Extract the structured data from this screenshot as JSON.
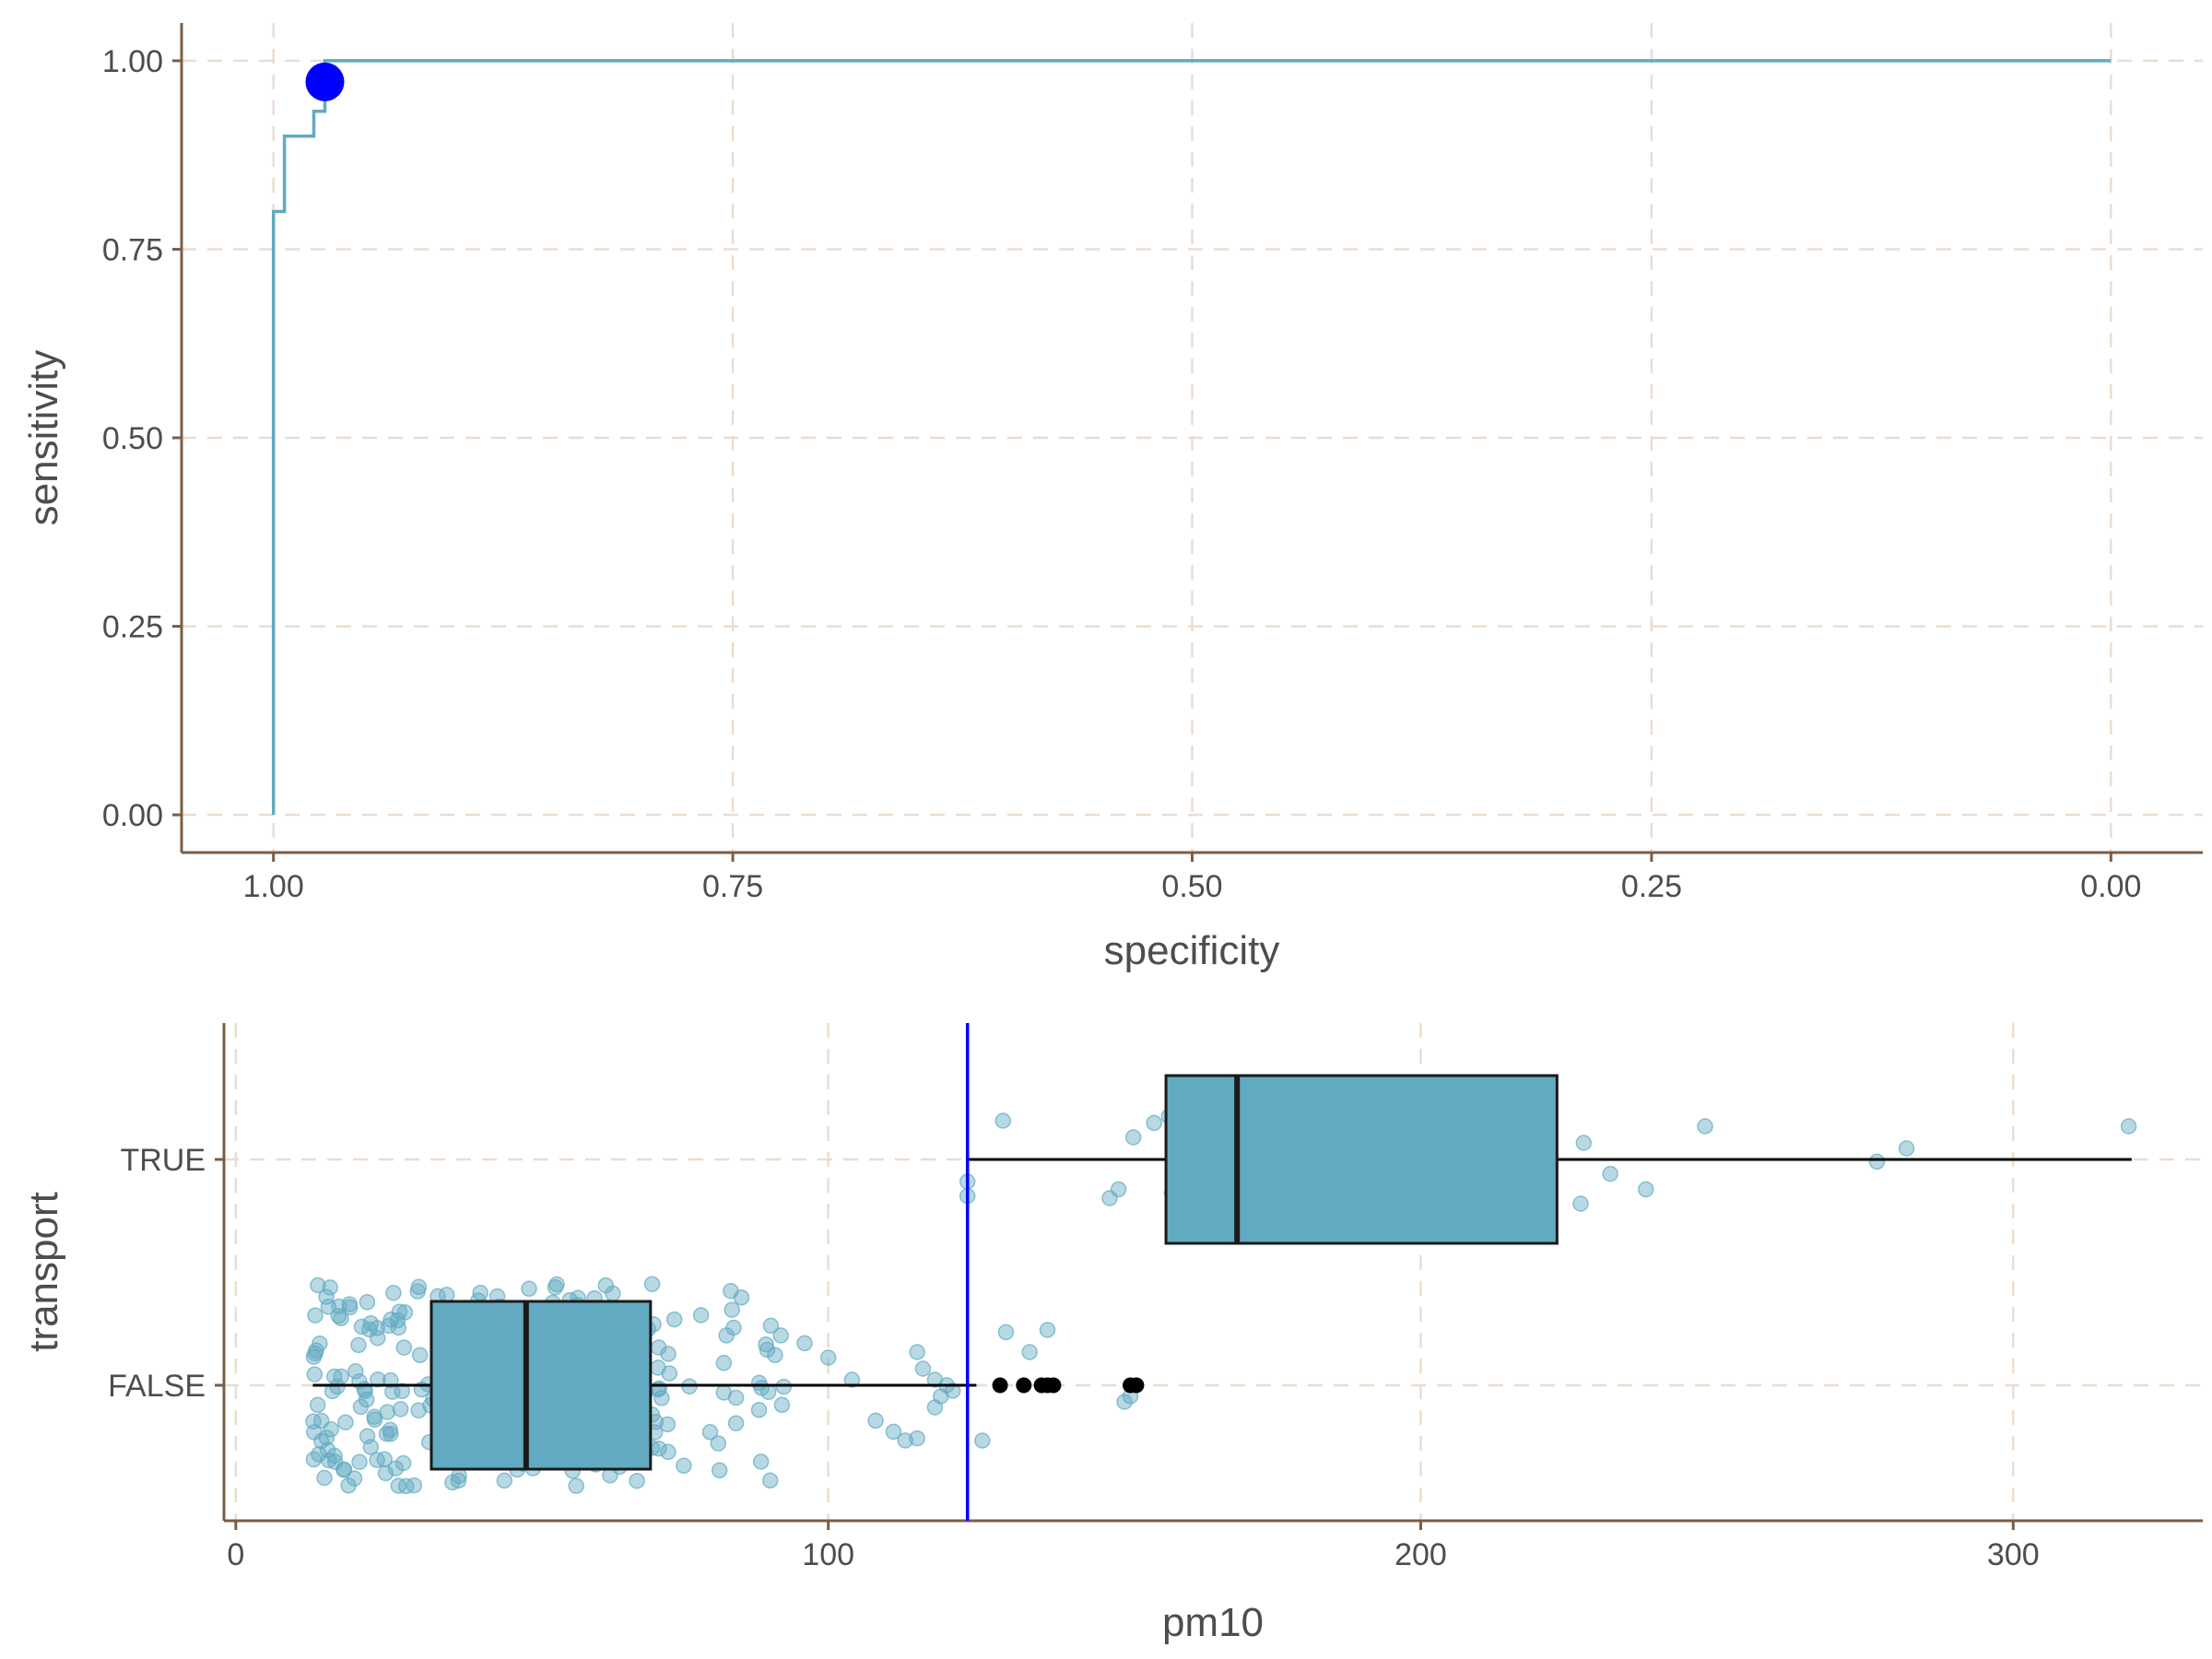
{
  "chart_data": [
    {
      "type": "line",
      "subtype": "roc-step-curve",
      "xlabel": "specificity",
      "ylabel": "sensitivity",
      "x_reversed": true,
      "xlim": [
        1.05,
        -0.05
      ],
      "ylim": [
        -0.05,
        1.05
      ],
      "x_ticks": [
        1.0,
        0.75,
        0.5,
        0.25,
        0.0
      ],
      "x_tick_labels": [
        "1.00",
        "0.75",
        "0.50",
        "0.25",
        "0.00"
      ],
      "y_ticks": [
        0.0,
        0.25,
        0.5,
        0.75,
        1.0
      ],
      "y_tick_labels": [
        "0.00",
        "0.25",
        "0.50",
        "0.75",
        "1.00"
      ],
      "grid": true,
      "series": [
        {
          "color": "#62aac1",
          "points": [
            [
              1.0,
              0.0
            ],
            [
              1.0,
              0.8
            ],
            [
              0.994,
              0.8
            ],
            [
              0.994,
              0.9
            ],
            [
              0.978,
              0.9
            ],
            [
              0.978,
              0.933
            ],
            [
              0.972,
              0.933
            ],
            [
              0.972,
              0.967
            ],
            [
              0.972,
              1.0
            ],
            [
              0.0,
              1.0
            ]
          ]
        }
      ],
      "highlight_point": {
        "specificity": 0.972,
        "sensitivity": 0.972,
        "color": "#0000ff"
      }
    },
    {
      "type": "boxplot",
      "orientation": "horizontal",
      "xlabel": "pm10",
      "ylabel": "transport",
      "xlim": [
        -2,
        332
      ],
      "x_ticks": [
        0,
        100,
        200,
        300
      ],
      "x_tick_labels": [
        "0",
        "100",
        "200",
        "300"
      ],
      "categories": [
        "TRUE",
        "FALSE"
      ],
      "grid": true,
      "box_fill": "#62aac1",
      "jitter_color": "#62aac1",
      "threshold": {
        "value": 123.5,
        "color": "#0000ff"
      },
      "boxes": [
        {
          "category": "TRUE",
          "whisker_low": 123.5,
          "q1": 157,
          "median": 169,
          "q3": 223,
          "whisker_high": 320,
          "outliers": []
        },
        {
          "category": "FALSE",
          "whisker_low": 13,
          "q1": 33,
          "median": 49,
          "q3": 70,
          "whisker_high": 125,
          "outliers": [
            129,
            133,
            136,
            137,
            138,
            151,
            152
          ]
        }
      ],
      "jitter_points": {
        "TRUE": [
          [
            129.5,
            0.35
          ],
          [
            151.5,
            0.2
          ],
          [
            157.5,
            0.39
          ],
          [
            155,
            0.33
          ],
          [
            161,
            0.37
          ],
          [
            191,
            0.39
          ],
          [
            248,
            0.3
          ],
          [
            319.5,
            0.3
          ],
          [
            227.5,
            0.15
          ],
          [
            282,
            0.1
          ],
          [
            277,
            -0.02
          ],
          [
            232,
            -0.13
          ],
          [
            238,
            -0.27
          ],
          [
            227,
            -0.4
          ],
          [
            149,
            -0.27
          ],
          [
            147.5,
            -0.35
          ],
          [
            123.5,
            -0.2
          ],
          [
            123.5,
            -0.33
          ],
          [
            158,
            -0.3
          ],
          [
            186,
            -0.38
          ],
          [
            173,
            0.25
          ],
          [
            208,
            -0.12
          ]
        ],
        "FALSE": []
      }
    }
  ]
}
